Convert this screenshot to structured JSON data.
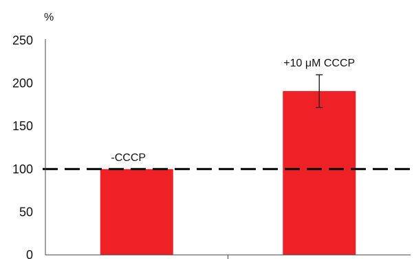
{
  "chart_data": {
    "type": "bar",
    "title": "",
    "xlabel": "",
    "ylabel": "%",
    "ylim": [
      0,
      250
    ],
    "yticks": [
      0,
      50,
      100,
      150,
      200,
      250
    ],
    "grid": false,
    "categories": [
      "-CCCP",
      "+10 μM CCCP"
    ],
    "series": [
      {
        "values": [
          100,
          191
        ],
        "error": [
          null,
          19
        ],
        "color": "#ee2127"
      }
    ],
    "reference_line": {
      "y": 100,
      "style": "dashed",
      "color": "#000000"
    },
    "axis_color": "#444444"
  }
}
